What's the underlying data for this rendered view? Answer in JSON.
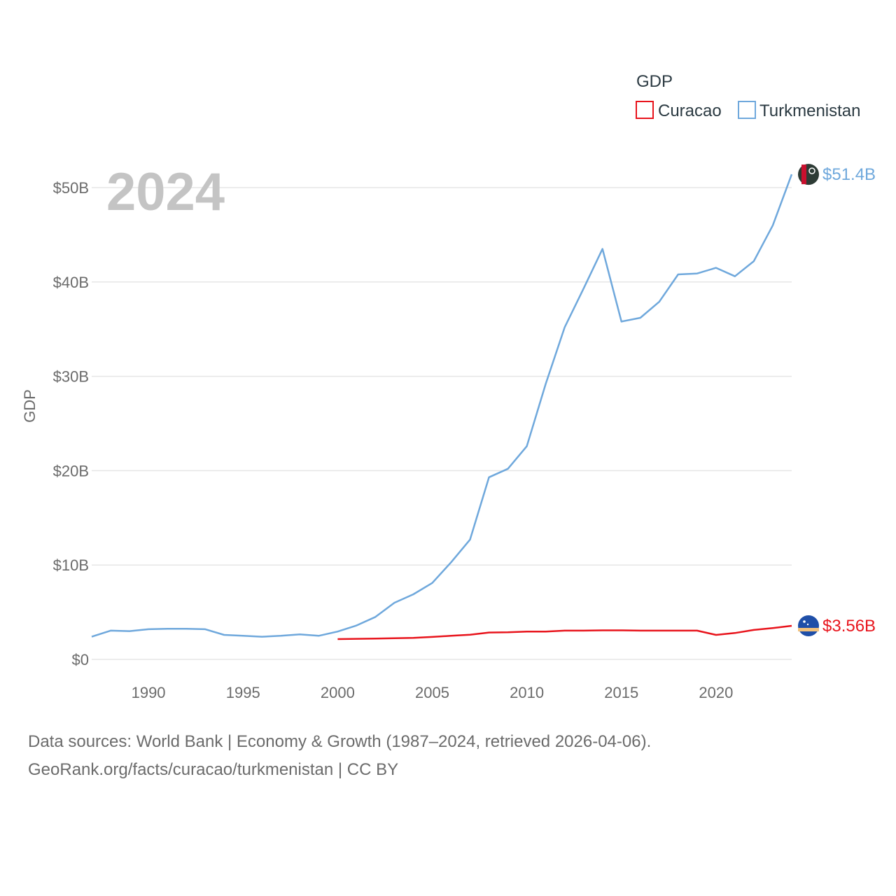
{
  "chart_data": {
    "type": "line",
    "year_label": "2024",
    "legend_title": "GDP",
    "ylabel": "GDP",
    "xlabel": "",
    "xlim": [
      1987,
      2024
    ],
    "ylim": [
      0,
      50
    ],
    "y_ticks": [
      0,
      10,
      20,
      30,
      40,
      50
    ],
    "y_tick_labels": [
      "$0",
      "$10B",
      "$20B",
      "$30B",
      "$40B",
      "$50B"
    ],
    "x_ticks": [
      1990,
      1995,
      2000,
      2005,
      2010,
      2015,
      2020
    ],
    "x_tick_labels": [
      "1990",
      "1995",
      "2000",
      "2005",
      "2010",
      "2015",
      "2020"
    ],
    "grid": true,
    "legend_position": "top-right",
    "series": [
      {
        "name": "Curacao",
        "color": "#e8141c",
        "unit": "billion USD",
        "end_label": "$3.56B",
        "points": [
          [
            2000,
            2.15
          ],
          [
            2001,
            2.18
          ],
          [
            2002,
            2.2
          ],
          [
            2003,
            2.24
          ],
          [
            2004,
            2.28
          ],
          [
            2005,
            2.38
          ],
          [
            2006,
            2.5
          ],
          [
            2007,
            2.62
          ],
          [
            2008,
            2.85
          ],
          [
            2009,
            2.87
          ],
          [
            2010,
            2.95
          ],
          [
            2011,
            2.95
          ],
          [
            2012,
            3.05
          ],
          [
            2013,
            3.05
          ],
          [
            2014,
            3.08
          ],
          [
            2015,
            3.08
          ],
          [
            2016,
            3.05
          ],
          [
            2017,
            3.05
          ],
          [
            2018,
            3.05
          ],
          [
            2019,
            3.05
          ],
          [
            2020,
            2.6
          ],
          [
            2021,
            2.8
          ],
          [
            2022,
            3.12
          ],
          [
            2023,
            3.32
          ],
          [
            2024,
            3.56
          ]
        ]
      },
      {
        "name": "Turkmenistan",
        "color": "#6fa8dc",
        "unit": "billion USD",
        "end_label": "$51.4B",
        "points": [
          [
            1987,
            2.4
          ],
          [
            1988,
            3.05
          ],
          [
            1989,
            3.0
          ],
          [
            1990,
            3.2
          ],
          [
            1991,
            3.25
          ],
          [
            1992,
            3.25
          ],
          [
            1993,
            3.2
          ],
          [
            1994,
            2.6
          ],
          [
            1995,
            2.5
          ],
          [
            1996,
            2.4
          ],
          [
            1997,
            2.5
          ],
          [
            1998,
            2.65
          ],
          [
            1999,
            2.5
          ],
          [
            2000,
            2.95
          ],
          [
            2001,
            3.6
          ],
          [
            2002,
            4.5
          ],
          [
            2003,
            6.0
          ],
          [
            2004,
            6.9
          ],
          [
            2005,
            8.1
          ],
          [
            2006,
            10.3
          ],
          [
            2007,
            12.7
          ],
          [
            2008,
            19.3
          ],
          [
            2009,
            20.2
          ],
          [
            2010,
            22.6
          ],
          [
            2011,
            29.2
          ],
          [
            2012,
            35.2
          ],
          [
            2013,
            39.3
          ],
          [
            2014,
            43.5
          ],
          [
            2015,
            35.8
          ],
          [
            2016,
            36.2
          ],
          [
            2017,
            37.9
          ],
          [
            2018,
            40.8
          ],
          [
            2019,
            40.9
          ],
          [
            2020,
            41.5
          ],
          [
            2021,
            40.6
          ],
          [
            2022,
            42.2
          ],
          [
            2023,
            46.0
          ],
          [
            2024,
            51.4
          ]
        ]
      }
    ]
  },
  "footer": {
    "line1": "Data sources: World Bank | Economy & Growth (1987–2024, retrieved 2026-04-06).",
    "line2": "GeoRank.org/facts/curacao/turkmenistan | CC BY"
  }
}
